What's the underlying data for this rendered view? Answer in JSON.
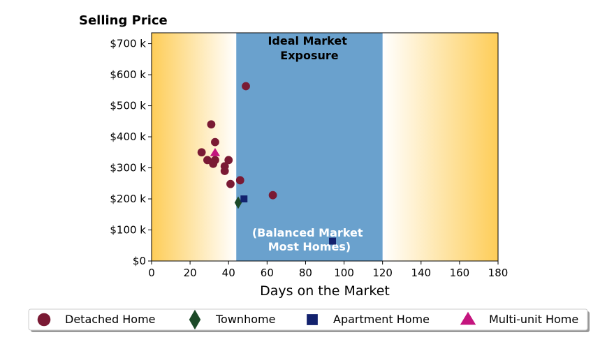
{
  "chart_data": {
    "type": "scatter",
    "ylabel": "Selling Price",
    "xlabel": "Days on the Market",
    "xlim": [
      0,
      180
    ],
    "ylim": [
      0,
      735000
    ],
    "xticks": [
      0,
      20,
      40,
      60,
      80,
      100,
      120,
      140,
      160,
      180
    ],
    "xtick_labels": [
      "0",
      "20",
      "40",
      "60",
      "80",
      "100",
      "120",
      "140",
      "160",
      "180"
    ],
    "yticks": [
      0,
      100000,
      200000,
      300000,
      400000,
      500000,
      600000,
      700000
    ],
    "ytick_labels": [
      "$0",
      "$100 k",
      "$200 k",
      "$300 k",
      "$400 k",
      "$500 k",
      "$600 k",
      "$700 k"
    ],
    "grid": false,
    "band": {
      "x_range": [
        44,
        120
      ],
      "color": "#6aa1cd",
      "top_label_lines": [
        "Ideal Market",
        "Exposure"
      ],
      "bottom_label_lines": [
        "(Balanced Market",
        "Most Homes)"
      ]
    },
    "background_gradient": {
      "edge_color": "#fecd58",
      "center_color": "#ffffff"
    },
    "legend_position": "bottom",
    "series": [
      {
        "name": "Detached Home",
        "marker": "circle",
        "color": "#7a1a34",
        "points": [
          {
            "x": 49,
            "y": 563000
          },
          {
            "x": 31,
            "y": 440000
          },
          {
            "x": 33,
            "y": 383000
          },
          {
            "x": 26,
            "y": 350000
          },
          {
            "x": 29,
            "y": 325000
          },
          {
            "x": 33,
            "y": 325000
          },
          {
            "x": 40,
            "y": 325000
          },
          {
            "x": 32,
            "y": 313000
          },
          {
            "x": 38,
            "y": 305000
          },
          {
            "x": 38,
            "y": 290000
          },
          {
            "x": 46,
            "y": 260000
          },
          {
            "x": 41,
            "y": 248000
          },
          {
            "x": 63,
            "y": 212000
          }
        ]
      },
      {
        "name": "Townhome",
        "marker": "diamond",
        "color": "#1c4a28",
        "points": [
          {
            "x": 45,
            "y": 188000
          }
        ]
      },
      {
        "name": "Apartment Home",
        "marker": "square",
        "color": "#13226e",
        "points": [
          {
            "x": 48,
            "y": 200000
          },
          {
            "x": 94,
            "y": 64000
          }
        ]
      },
      {
        "name": "Multi-unit Home",
        "marker": "triangle",
        "color": "#c4157e",
        "points": [
          {
            "x": 33,
            "y": 348000
          }
        ]
      }
    ]
  }
}
